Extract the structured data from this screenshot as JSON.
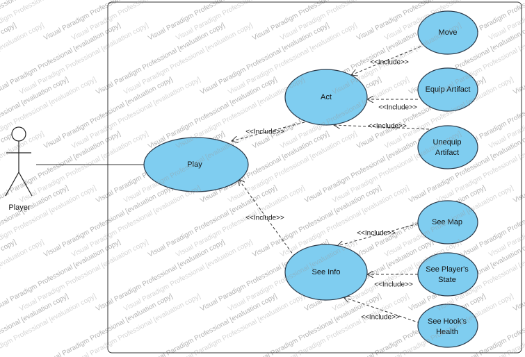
{
  "actor": {
    "name": "Player"
  },
  "use_cases": {
    "play": "Play",
    "act": "Act",
    "see_info": "See Info",
    "move": "Move",
    "equip": "Equip Artifact",
    "unequip": [
      "Unequip",
      "Artifact"
    ],
    "see_map": "See Map",
    "see_players_state": [
      "See Player's",
      "State"
    ],
    "see_hooks_health": [
      "See Hook's",
      "Health"
    ]
  },
  "relations": {
    "act_play": "<<Include>>",
    "seeinfo_play": "<<Include>>",
    "move_act": "<<Include>>",
    "equip_act": "<<Include>>",
    "unequip_act": "<<Include>>",
    "seemap_seeinfo": "<<Include>>",
    "state_seeinfo": "<<Include>>",
    "health_seeinfo": "<<Include>>"
  },
  "watermark": "Visual Paradigm Professional [evaluation copy]"
}
